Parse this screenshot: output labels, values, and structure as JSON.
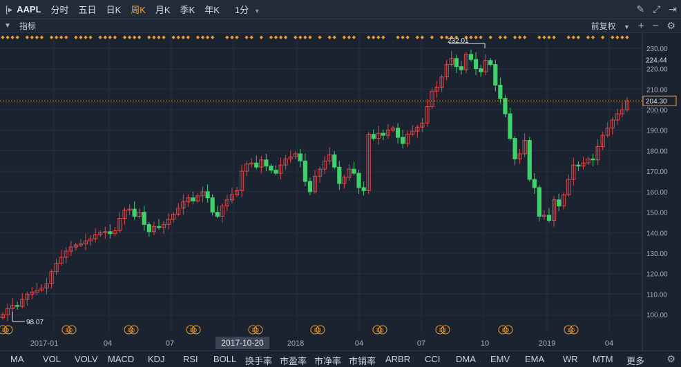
{
  "toolbar": {
    "symbol": "AAPL",
    "periods": [
      "分时",
      "五日",
      "日K",
      "周K",
      "月K",
      "季K",
      "年K"
    ],
    "active_period": "周K",
    "interval": "1分"
  },
  "subbar": {
    "label": "指标",
    "adjust": "前复权"
  },
  "price_axis": {
    "ticks": [
      "230.00",
      "220.00",
      "210.00",
      "200.00",
      "190.00",
      "180.00",
      "170.00",
      "160.00",
      "150.00",
      "140.00",
      "130.00",
      "120.00",
      "110.00",
      "100.00"
    ],
    "last_price": "224.44",
    "current_price": "204.30"
  },
  "date_axis": {
    "labels": [
      "2017-01",
      "04",
      "07",
      "2018",
      "04",
      "07",
      "10",
      "2019",
      "04"
    ],
    "highlight": "2017-10-20"
  },
  "annotations": {
    "high": "232.01",
    "low": "98.07"
  },
  "indicators": [
    "MA",
    "VOL",
    "VOLV",
    "MACD",
    "KDJ",
    "RSI",
    "BOLL",
    "换手率",
    "市盈率",
    "市净率",
    "市销率",
    "ARBR",
    "CCI",
    "DMA",
    "EMV",
    "EMA",
    "WR",
    "MTM",
    "更多"
  ],
  "chart_data": {
    "type": "candlestick",
    "x_start": "2017-01-06",
    "ylim": [
      96,
      234
    ],
    "ticks_y": [
      100,
      110,
      120,
      130,
      140,
      150,
      160,
      170,
      180,
      190,
      200,
      210,
      220,
      230
    ],
    "colors": {
      "up": "#e04848",
      "down": "#3fd16a",
      "current_line": "#f0a030"
    },
    "closes": [
      100.0,
      103.0,
      104.5,
      104.0,
      107.5,
      110.0,
      111.0,
      112.0,
      113.0,
      115.0,
      121.0,
      125.0,
      128.0,
      131.0,
      133.0,
      134.0,
      134.5,
      136.0,
      137.0,
      139.0,
      140.0,
      140.5,
      139.5,
      141.0,
      147.0,
      151.0,
      151.5,
      148.0,
      150.0,
      144.0,
      140.5,
      143.0,
      142.5,
      144.0,
      146.5,
      149.0,
      152.0,
      155.0,
      157.0,
      155.5,
      158.0,
      160.0,
      157.0,
      150.0,
      148.0,
      153.0,
      156.0,
      158.5,
      160.5,
      170.0,
      173.5,
      174.0,
      172.0,
      175.5,
      172.5,
      170.5,
      169.0,
      173.0,
      176.0,
      177.0,
      178.5,
      175.0,
      165.0,
      160.0,
      167.5,
      171.0,
      175.0,
      178.0,
      172.0,
      164.0,
      167.0,
      171.0,
      169.0,
      162.0,
      160.5,
      188.0,
      186.0,
      188.5,
      187.5,
      190.0,
      191.0,
      186.5,
      183.5,
      188.0,
      189.5,
      191.5,
      193.5,
      201.5,
      209.0,
      211.0,
      216.0,
      222.0,
      225.0,
      221.0,
      219.5,
      227.0,
      224.5,
      220.0,
      218.5,
      224.0,
      222.0,
      212.0,
      205.5,
      198.0,
      186.0,
      176.0,
      178.5,
      185.0,
      166.0,
      162.0,
      148.0,
      148.5,
      146.0,
      156.0,
      153.0,
      158.5,
      166.0,
      173.0,
      172.5,
      174.0,
      176.0,
      175.5,
      182.0,
      187.5,
      191.0,
      195.0,
      198.0,
      200.0,
      204.3
    ]
  }
}
